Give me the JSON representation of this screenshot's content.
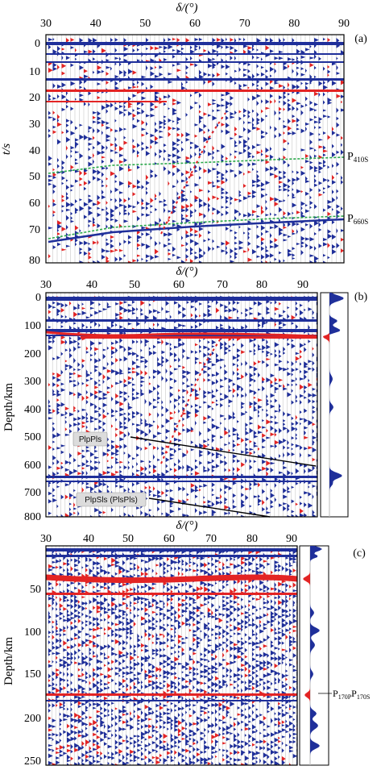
{
  "colors": {
    "positive": "#1f2f9a",
    "negative": "#e32424",
    "frame": "#000000",
    "trace": "#c9c9c9",
    "callout_bg": "#dcdcdc"
  },
  "panel_a": {
    "label": "(a)",
    "x_title": "δ/(°)",
    "y_title": "t/s",
    "x_ticks": [
      "30",
      "40",
      "50",
      "60",
      "70",
      "80",
      "90"
    ],
    "y_ticks": [
      "0",
      "10",
      "20",
      "30",
      "40",
      "50",
      "60",
      "70",
      "80"
    ],
    "annotations": {
      "p410_main": "P",
      "p410_sub": "410S",
      "p660_main": "P",
      "p660_sub": "660S"
    }
  },
  "panel_b": {
    "label": "(b)",
    "x_title": "δ/(°)",
    "y_title": "Depth/km",
    "x_ticks": [
      "30",
      "40",
      "50",
      "60",
      "70",
      "80",
      "90"
    ],
    "y_ticks": [
      "0",
      "100",
      "200",
      "300",
      "400",
      "500",
      "600",
      "700",
      "800"
    ],
    "callouts": {
      "plppls": "PlpPls",
      "plpsls": "PlpSls (PlsPls)"
    }
  },
  "panel_c": {
    "label": "(c)",
    "x_title": "δ/(°)",
    "y_title": "Depth/km",
    "x_ticks": [
      "30",
      "40",
      "50",
      "60",
      "70",
      "80",
      "90"
    ],
    "y_ticks": [
      "50",
      "100",
      "150",
      "200",
      "250"
    ],
    "annotations": {
      "p170_a": "P",
      "p170_a_sub": "170P",
      "p170_b": "P",
      "p170_b_sub": "170S"
    }
  }
}
